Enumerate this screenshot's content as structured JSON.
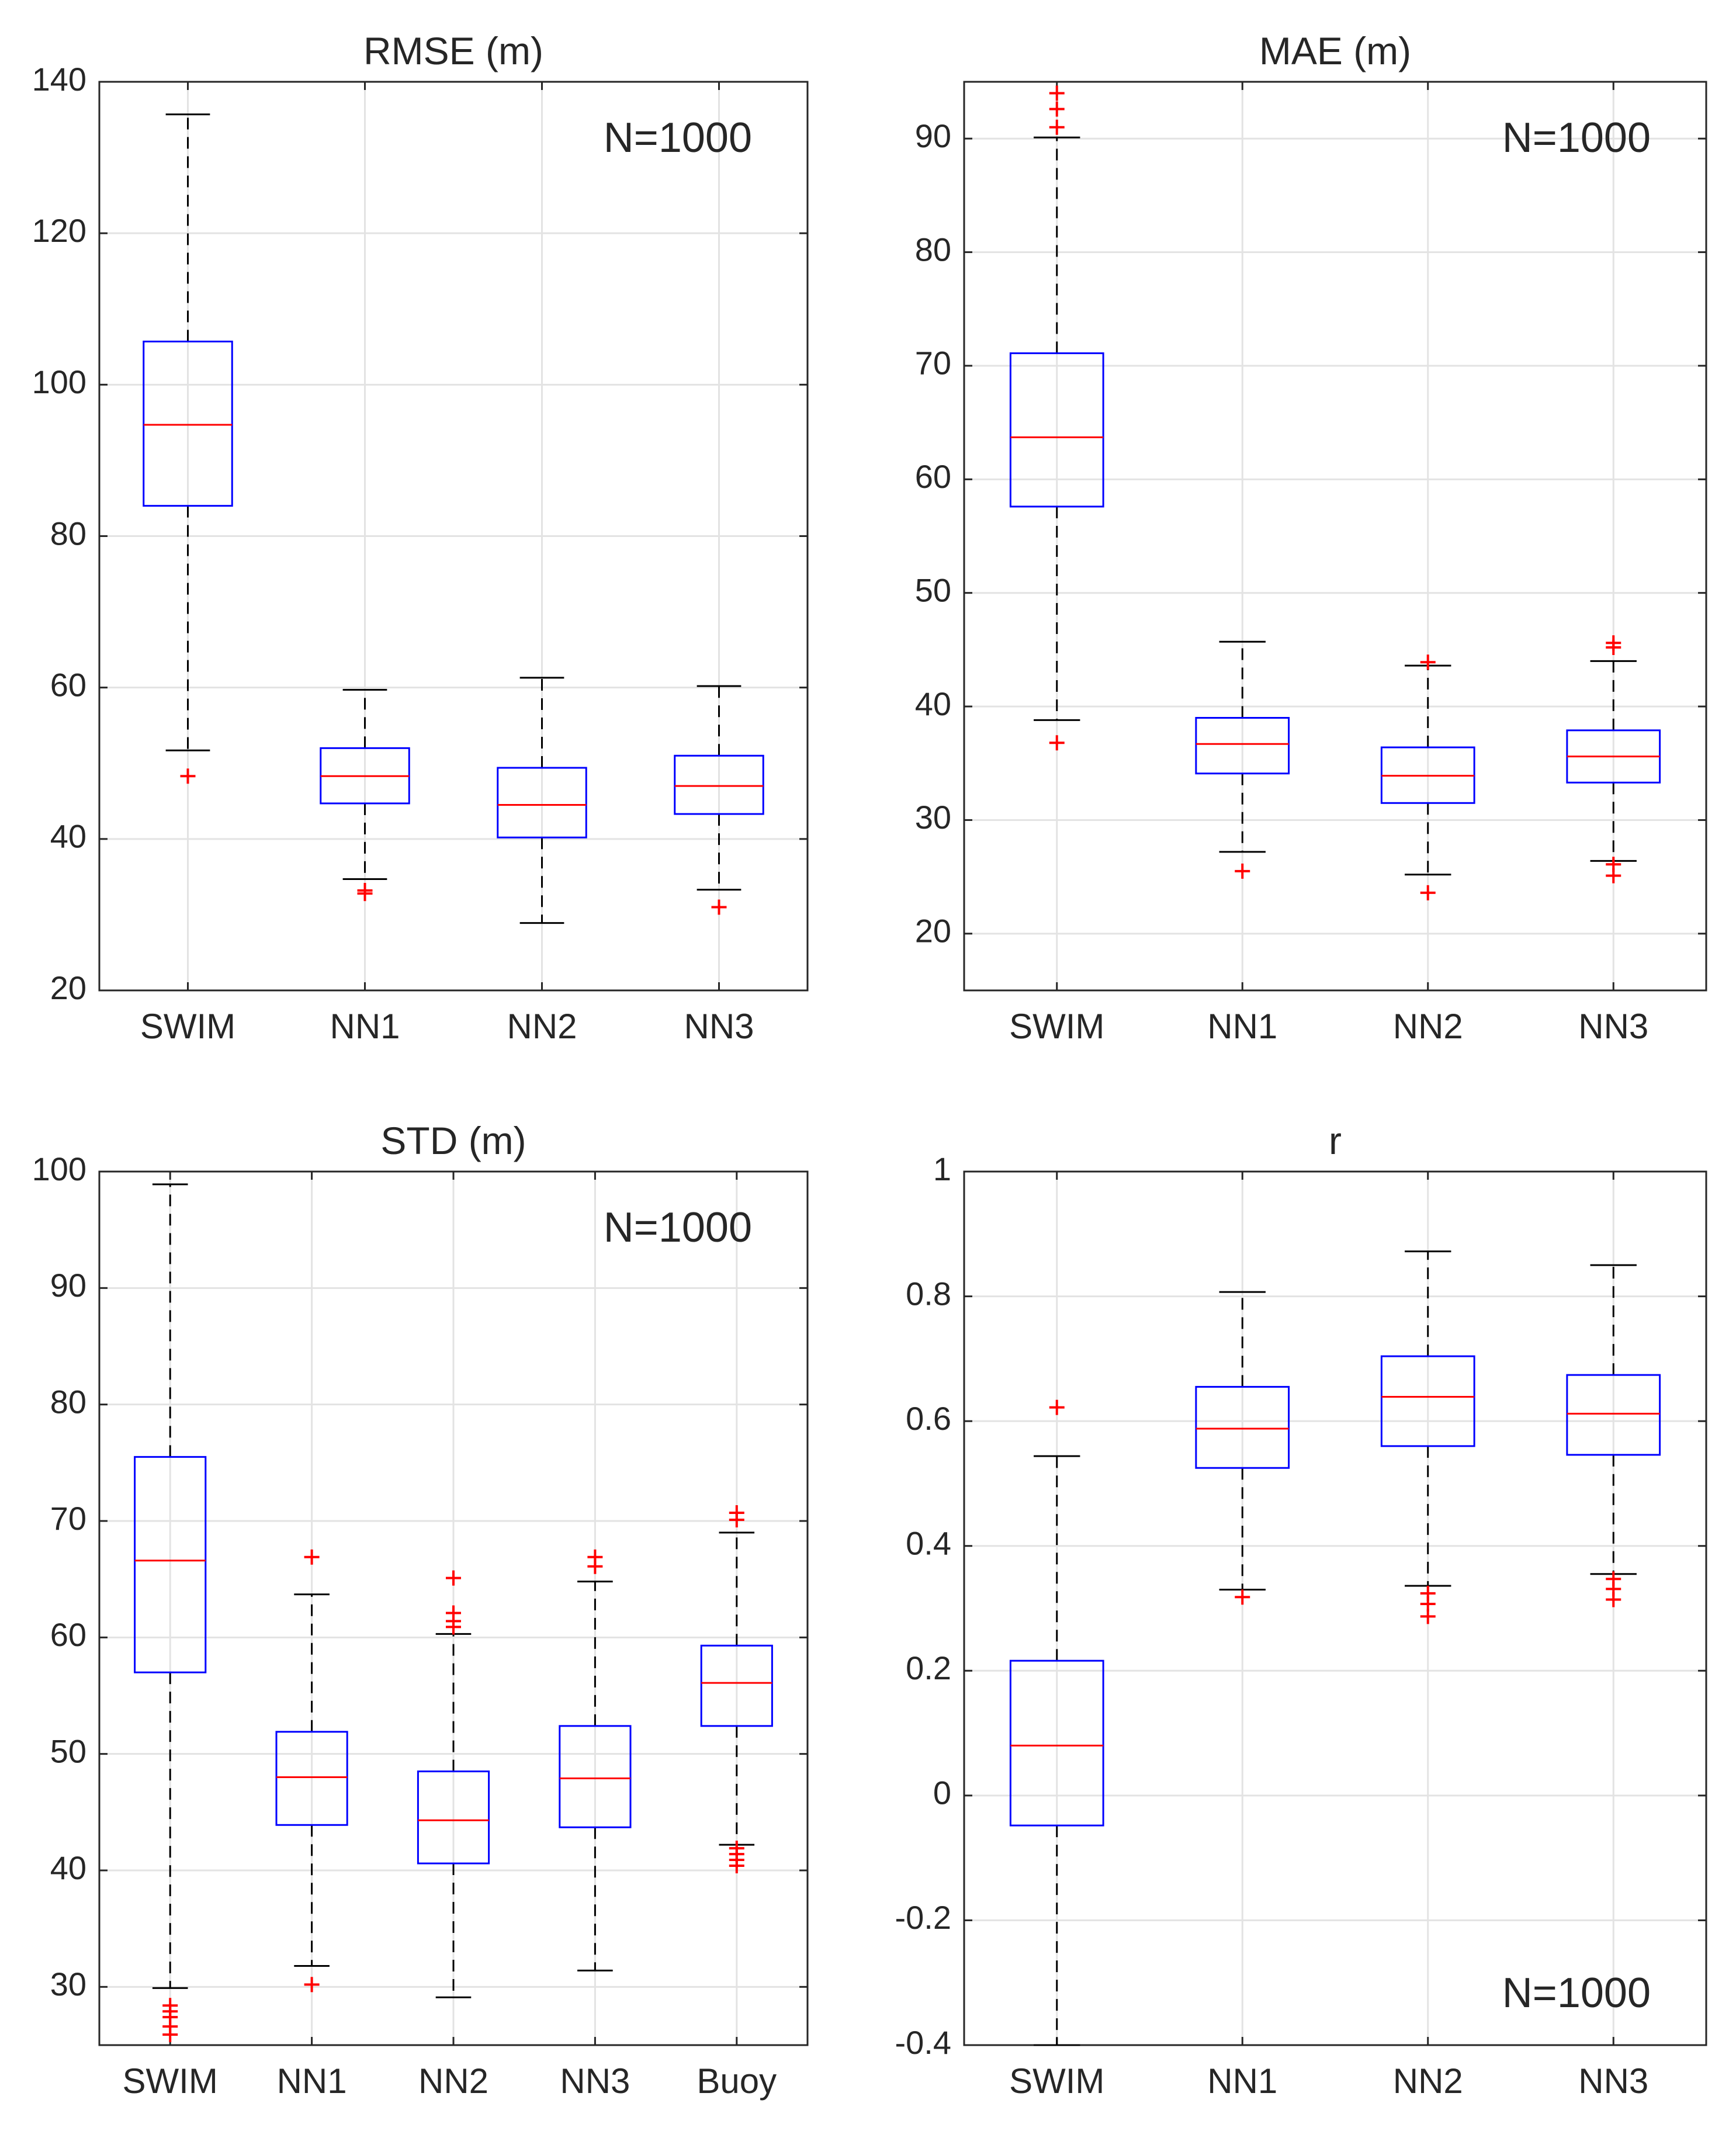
{
  "chart_data": [
    {
      "type": "boxplot",
      "title": "RMSE (m)",
      "annotation": "N=1000",
      "annotation_position": "top-right",
      "ylim": [
        20,
        140
      ],
      "yticks": [
        20,
        40,
        60,
        80,
        100,
        120,
        140
      ],
      "ytick_labels": [
        "20",
        "40",
        "60",
        "80",
        "100",
        "120",
        "140"
      ],
      "grid": true,
      "categories": [
        "SWIM",
        "NN1",
        "NN2",
        "NN3"
      ],
      "boxes": [
        {
          "q1": 84,
          "median": 94.7,
          "q3": 105.7,
          "whisker_low": 51.7,
          "whisker_high": 135.7,
          "outliers": [
            48.3
          ]
        },
        {
          "q1": 44.7,
          "median": 48.3,
          "q3": 52,
          "whisker_low": 34.7,
          "whisker_high": 59.7,
          "outliers": [
            33.2,
            32.8
          ]
        },
        {
          "q1": 40.2,
          "median": 44.5,
          "q3": 49.4,
          "whisker_low": 28.9,
          "whisker_high": 61.3,
          "outliers": []
        },
        {
          "q1": 43.3,
          "median": 47,
          "q3": 51,
          "whisker_low": 33.3,
          "whisker_high": 60.2,
          "outliers": [
            31
          ]
        }
      ]
    },
    {
      "type": "boxplot",
      "title": "MAE (m)",
      "annotation": "N=1000",
      "annotation_position": "top-right",
      "ylim": [
        15,
        95
      ],
      "yticks": [
        20,
        30,
        40,
        50,
        60,
        70,
        80,
        90
      ],
      "ytick_labels": [
        "20",
        "30",
        "40",
        "50",
        "60",
        "70",
        "80",
        "90"
      ],
      "grid": true,
      "categories": [
        "SWIM",
        "NN1",
        "NN2",
        "NN3"
      ],
      "boxes": [
        {
          "q1": 57.6,
          "median": 63.7,
          "q3": 71.1,
          "whisker_low": 38.8,
          "whisker_high": 90.1,
          "outliers": [
            36.8,
            91,
            92.6,
            94
          ]
        },
        {
          "q1": 34.1,
          "median": 36.7,
          "q3": 39,
          "whisker_low": 27.2,
          "whisker_high": 45.7,
          "outliers": [
            25.5
          ]
        },
        {
          "q1": 31.5,
          "median": 33.9,
          "q3": 36.4,
          "whisker_low": 25.2,
          "whisker_high": 43.6,
          "outliers": [
            23.6,
            43.9
          ]
        },
        {
          "q1": 33.3,
          "median": 35.6,
          "q3": 37.9,
          "whisker_low": 26.4,
          "whisker_high": 44,
          "outliers": [
            25.1,
            26.1,
            45.2,
            45.6
          ]
        }
      ]
    },
    {
      "type": "boxplot",
      "title": "STD (m)",
      "annotation": "N=1000",
      "annotation_position": "top-right",
      "ylim": [
        25,
        100
      ],
      "yticks": [
        30,
        40,
        50,
        60,
        70,
        80,
        90,
        100
      ],
      "ytick_labels": [
        "30",
        "40",
        "50",
        "60",
        "70",
        "80",
        "90",
        "100"
      ],
      "grid": true,
      "categories": [
        "SWIM",
        "NN1",
        "NN2",
        "NN3",
        "Buoy"
      ],
      "boxes": [
        {
          "q1": 57,
          "median": 66.6,
          "q3": 75.5,
          "whisker_low": 29.9,
          "whisker_high": 98.9,
          "outliers": [
            25.9,
            26.6,
            27.4,
            27.9,
            28.4
          ]
        },
        {
          "q1": 43.9,
          "median": 48,
          "q3": 51.9,
          "whisker_low": 31.8,
          "whisker_high": 63.7,
          "outliers": [
            30.2,
            66.9
          ]
        },
        {
          "q1": 40.6,
          "median": 44.3,
          "q3": 48.5,
          "whisker_low": 29.1,
          "whisker_high": 60.3,
          "outliers": [
            60.9,
            61.4,
            62.1,
            65.1
          ]
        },
        {
          "q1": 43.7,
          "median": 47.9,
          "q3": 52.4,
          "whisker_low": 31.4,
          "whisker_high": 64.8,
          "outliers": [
            66.1,
            66.9
          ]
        },
        {
          "q1": 52.4,
          "median": 56.1,
          "q3": 59.3,
          "whisker_low": 42.2,
          "whisker_high": 69,
          "outliers": [
            40.4,
            40.9,
            41.4,
            41.9,
            70.1,
            70.7
          ]
        }
      ]
    },
    {
      "type": "boxplot",
      "title": "r",
      "annotation": "N=1000",
      "annotation_position": "bottom-right",
      "ylim": [
        -0.4,
        1
      ],
      "yticks": [
        -0.4,
        -0.2,
        0,
        0.2,
        0.4,
        0.6,
        0.8,
        1
      ],
      "ytick_labels": [
        "-0.4",
        "-0.2",
        "0",
        "0.2",
        "0.4",
        "0.6",
        "0.8",
        "1"
      ],
      "grid": true,
      "categories": [
        "SWIM",
        "NN1",
        "NN2",
        "NN3"
      ],
      "boxes": [
        {
          "q1": -0.048,
          "median": 0.08,
          "q3": 0.216,
          "whisker_low": -0.4,
          "whisker_high": 0.544,
          "outliers": [
            0.622
          ]
        },
        {
          "q1": 0.525,
          "median": 0.588,
          "q3": 0.655,
          "whisker_low": 0.33,
          "whisker_high": 0.807,
          "outliers": [
            0.318
          ]
        },
        {
          "q1": 0.56,
          "median": 0.639,
          "q3": 0.704,
          "whisker_low": 0.336,
          "whisker_high": 0.872,
          "outliers": [
            0.287,
            0.307,
            0.324
          ]
        },
        {
          "q1": 0.546,
          "median": 0.612,
          "q3": 0.674,
          "whisker_low": 0.355,
          "whisker_high": 0.85,
          "outliers": [
            0.314,
            0.331,
            0.347
          ]
        }
      ]
    }
  ]
}
